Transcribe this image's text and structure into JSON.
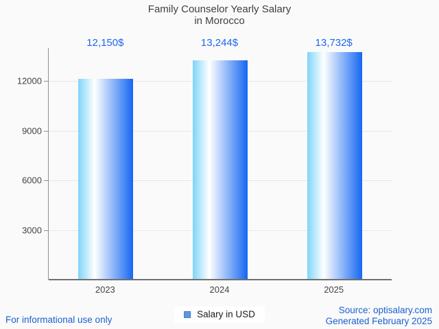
{
  "title": {
    "line1": "Family Counselor Yearly Salary",
    "line2": "in Morocco"
  },
  "chart_data": {
    "type": "bar",
    "categories": [
      "2023",
      "2024",
      "2025"
    ],
    "series": [
      {
        "name": "Salary in USD",
        "values": [
          12150,
          13244,
          13732
        ]
      }
    ],
    "value_labels": [
      "12,150$",
      "13,244$",
      "13,732$"
    ],
    "title": "Family Counselor Yearly Salary in Morocco",
    "xlabel": "",
    "ylabel": "",
    "ylim": [
      0,
      14000
    ],
    "yticks": [
      3000,
      6000,
      9000,
      12000
    ],
    "grid": true,
    "legend_position": "bottom"
  },
  "legend": {
    "label": "Salary in USD"
  },
  "footer": {
    "left": "For informational use only",
    "source": "Source: optisalary.com",
    "generated": "Generated February 2025"
  },
  "colors": {
    "background": "#fafafa",
    "title": "#3f3f3f",
    "axis_label": "#424242",
    "value_label": "#1b66f0",
    "gridline": "#e7e7e7",
    "axis_line": "#8f8f8f",
    "baseline": "#6f6f6f",
    "bar_grad_0": "#7ed4f9",
    "bar_grad_1": "#ffffff",
    "bar_grad_2": "#1567f2",
    "legend_marker": "#5f97dd",
    "legend_marker_border": "#4a7fc8",
    "legend_bg": "#ffffff",
    "footer_link": "#1a5fd0"
  }
}
